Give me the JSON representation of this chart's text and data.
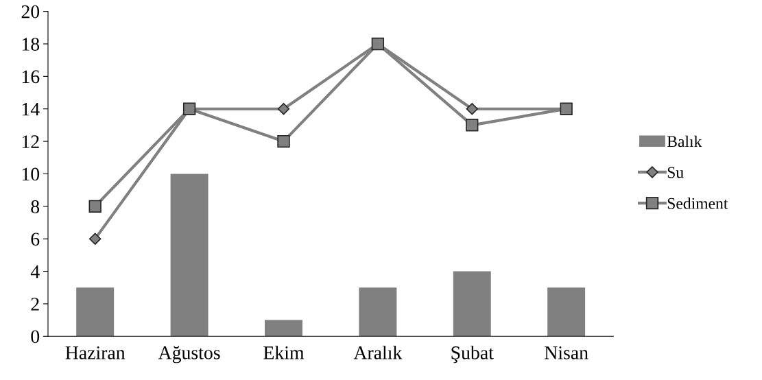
{
  "chart_data": {
    "type": "bar",
    "categories": [
      "Haziran",
      "Ağustos",
      "Ekim",
      "Aralık",
      "Şubat",
      "Nisan"
    ],
    "series": [
      {
        "name": "Balık",
        "color": "#808080",
        "values": [
          3,
          10,
          1,
          3,
          4,
          3
        ]
      },
      {
        "name": "Su",
        "type": "line",
        "color": "#808080",
        "marker": "diamond",
        "values": [
          6,
          14,
          14,
          18,
          14,
          14
        ]
      },
      {
        "name": "Sediment",
        "type": "line",
        "color": "#808080",
        "marker": "square",
        "values": [
          8,
          14,
          12,
          18,
          13,
          14
        ]
      }
    ],
    "ylim": [
      0,
      20
    ],
    "yticks": [
      0,
      2,
      4,
      6,
      8,
      10,
      12,
      14,
      16,
      18,
      20
    ],
    "grid": false,
    "legend": "right",
    "line_style": "solid"
  }
}
